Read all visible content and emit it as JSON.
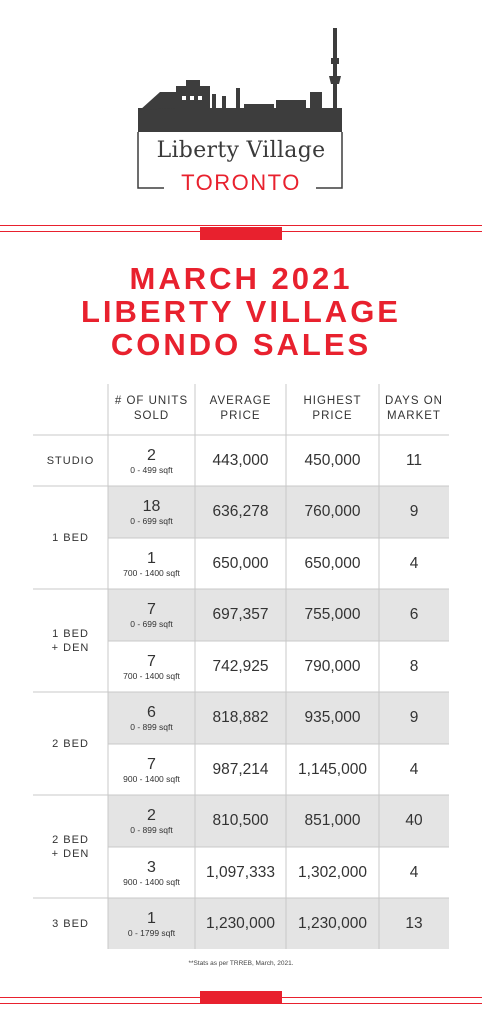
{
  "brand": {
    "village": "Liberty Village",
    "city": "TORONTO",
    "accent_color": "#e8212e"
  },
  "title": {
    "line1": "MARCH 2021",
    "line2": "LIBERTY VILLAGE",
    "line3": "CONDO SALES"
  },
  "table": {
    "headers": {
      "units": [
        "# OF UNITS",
        "SOLD"
      ],
      "avg": [
        "AVERAGE",
        "PRICE"
      ],
      "high": [
        "HIGHEST",
        "PRICE"
      ],
      "days": [
        "DAYS ON",
        "MARKET"
      ]
    },
    "groups": [
      {
        "label": [
          "STUDIO"
        ]
      },
      {
        "label": [
          "1 BED"
        ]
      },
      {
        "label": [
          "1 BED",
          "+ DEN"
        ]
      },
      {
        "label": [
          "2 BED"
        ]
      },
      {
        "label": [
          "2 BED",
          "+ DEN"
        ]
      },
      {
        "label": [
          "3 BED"
        ]
      }
    ],
    "rows": [
      {
        "units": "2",
        "sqft": "0 - 499 sqft",
        "avg": "443,000",
        "high": "450,000",
        "days": "11"
      },
      {
        "units": "18",
        "sqft": "0 - 699 sqft",
        "avg": "636,278",
        "high": "760,000",
        "days": "9"
      },
      {
        "units": "1",
        "sqft": "700 - 1400 sqft",
        "avg": "650,000",
        "high": "650,000",
        "days": "4"
      },
      {
        "units": "7",
        "sqft": "0 - 699 sqft",
        "avg": "697,357",
        "high": "755,000",
        "days": "6"
      },
      {
        "units": "7",
        "sqft": "700 - 1400 sqft",
        "avg": "742,925",
        "high": "790,000",
        "days": "8"
      },
      {
        "units": "6",
        "sqft": "0 - 899 sqft",
        "avg": "818,882",
        "high": "935,000",
        "days": "9"
      },
      {
        "units": "7",
        "sqft": "900 - 1400 sqft",
        "avg": "987,214",
        "high": "1,145,000",
        "days": "4"
      },
      {
        "units": "2",
        "sqft": "0 - 899 sqft",
        "avg": "810,500",
        "high": "851,000",
        "days": "40"
      },
      {
        "units": "3",
        "sqft": "900 - 1400 sqft",
        "avg": "1,097,333",
        "high": "1,302,000",
        "days": "4"
      },
      {
        "units": "1",
        "sqft": "0 - 1799 sqft",
        "avg": "1,230,000",
        "high": "1,230,000",
        "days": "13"
      }
    ]
  },
  "footnote": "**Stats as per TRREB, March, 2021."
}
